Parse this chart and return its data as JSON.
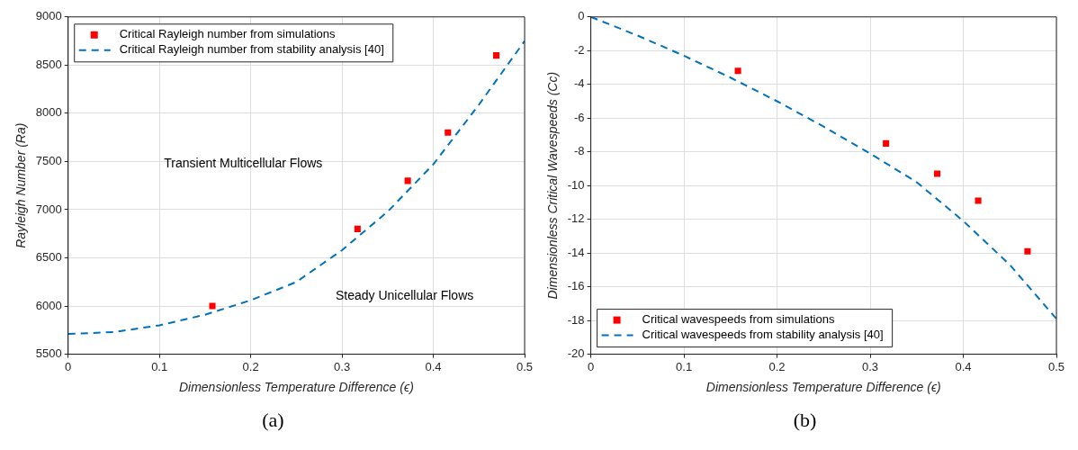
{
  "chart_data": [
    {
      "type": "scatter",
      "xlabel": "Dimensionless Temperature Difference (ϵ)",
      "ylabel": "Rayleigh Number (Ra)",
      "xlim": [
        0,
        0.5
      ],
      "xticks": [
        0,
        0.1,
        0.2,
        0.3,
        0.4,
        0.5
      ],
      "ylim": [
        5500,
        9000
      ],
      "yticks": [
        5500,
        6000,
        6500,
        7000,
        7500,
        8000,
        8500,
        9000
      ],
      "grid": true,
      "legend": "top left",
      "series": [
        {
          "name": "Critical Rayleigh number from simulations",
          "type": "scatter",
          "marker": "square",
          "color": "#ff0000",
          "x": [
            0.158,
            0.317,
            0.372,
            0.416,
            0.469
          ],
          "values": [
            6000,
            6800,
            7300,
            7800,
            8600
          ]
        },
        {
          "name": "Critical Rayleigh number from stability analysis [40]",
          "type": "line",
          "marker": "none",
          "line_style": "dashed",
          "color": "#0072bd",
          "x": [
            0,
            0.05,
            0.1,
            0.15,
            0.2,
            0.25,
            0.3,
            0.35,
            0.4,
            0.45,
            0.5
          ],
          "values": [
            5710,
            5730,
            5800,
            5910,
            6060,
            6250,
            6580,
            6980,
            7470,
            8090,
            8750
          ]
        }
      ],
      "annotations": [
        "Transient Multicellular Flows",
        "Steady Unicellular Flows",
        "(a)"
      ]
    },
    {
      "type": "scatter",
      "xlabel": "Dimensionless Temperature Difference (ϵ)",
      "ylabel": "Dimensionless Critical Wavespeeds (Cc)",
      "xlim": [
        0,
        0.5
      ],
      "xticks": [
        0,
        0.1,
        0.2,
        0.3,
        0.4,
        0.5
      ],
      "ylim": [
        -20,
        0
      ],
      "yticks": [
        -20,
        -18,
        -16,
        -14,
        -12,
        -10,
        -8,
        -6,
        -4,
        -2,
        0
      ],
      "grid": true,
      "legend": "bottom left",
      "series": [
        {
          "name": "Critical wavespeeds from simulations",
          "type": "scatter",
          "marker": "square",
          "color": "#ff0000",
          "x": [
            0.158,
            0.317,
            0.372,
            0.416,
            0.469
          ],
          "values": [
            -3.2,
            -7.5,
            -9.3,
            -10.9,
            -13.9
          ]
        },
        {
          "name": "Critical wavespeeds from stability analysis [40]",
          "type": "line",
          "marker": "none",
          "line_style": "dashed",
          "color": "#0072bd",
          "x": [
            0,
            0.05,
            0.1,
            0.15,
            0.2,
            0.25,
            0.3,
            0.35,
            0.4,
            0.45,
            0.5
          ],
          "values": [
            0,
            -1.1,
            -2.3,
            -3.6,
            -5.0,
            -6.5,
            -8.1,
            -9.8,
            -12.1,
            -14.7,
            -17.9
          ]
        }
      ],
      "annotations": [
        "(b)"
      ]
    }
  ]
}
